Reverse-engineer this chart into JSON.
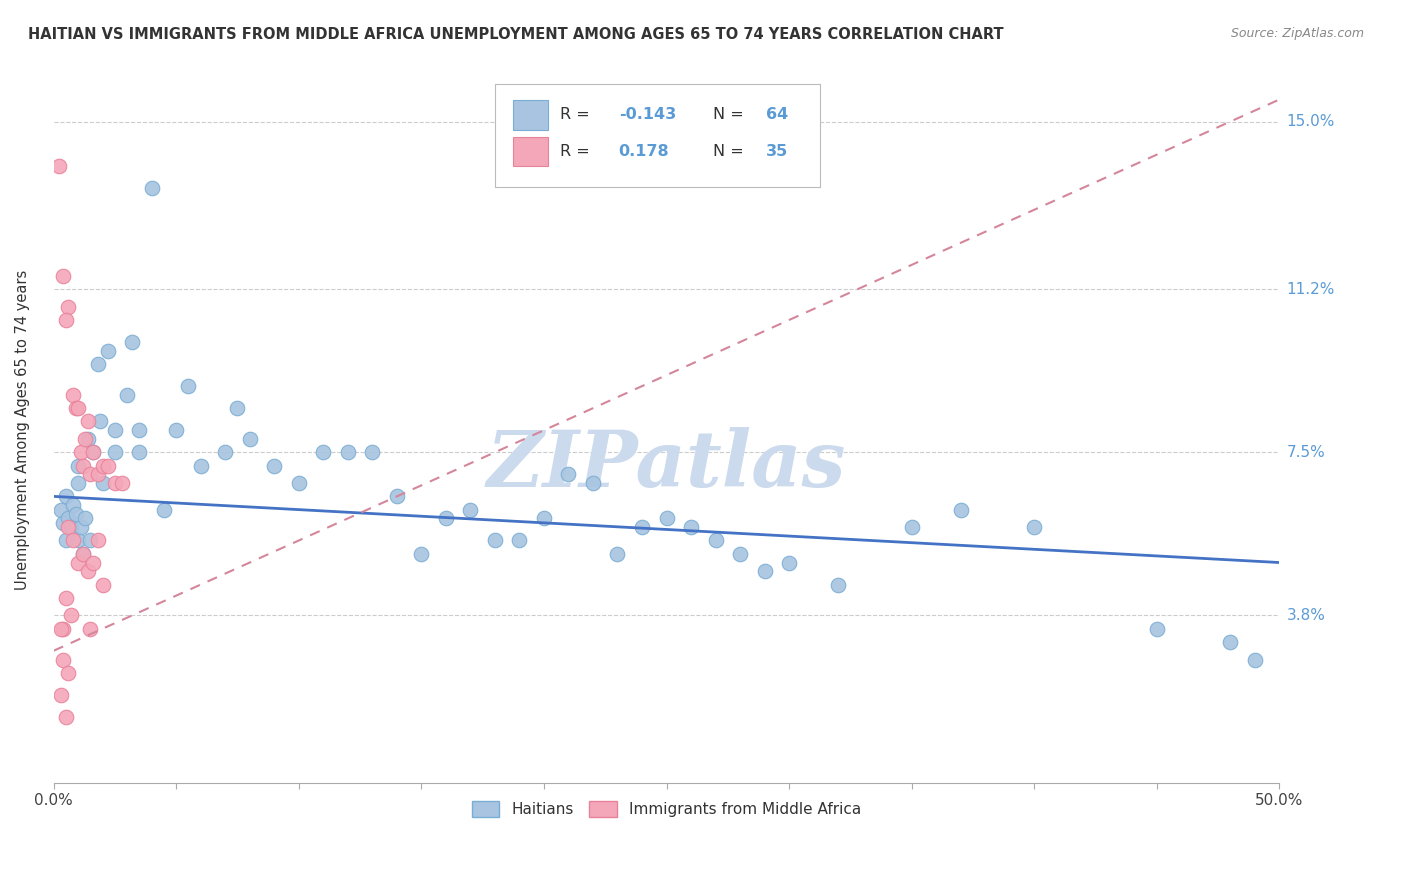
{
  "title": "HAITIAN VS IMMIGRANTS FROM MIDDLE AFRICA UNEMPLOYMENT AMONG AGES 65 TO 74 YEARS CORRELATION CHART",
  "source": "Source: ZipAtlas.com",
  "xmin": 0.0,
  "xmax": 50.0,
  "ymin": 0.0,
  "ymax": 16.0,
  "ylabel_values": [
    0.0,
    3.8,
    7.5,
    11.2,
    15.0
  ],
  "ylabel_labels": [
    "",
    "3.8%",
    "7.5%",
    "11.2%",
    "15.0%"
  ],
  "color_blue": "#a8c4e0",
  "color_blue_edge": "#7aadd4",
  "color_pink": "#f4a7b9",
  "color_pink_edge": "#e8829a",
  "color_blue_text": "#5b9bd5",
  "watermark_text": "ZIPatlas",
  "watermark_color": "#ccdaee",
  "trend_blue_color": "#4472c4",
  "trend_pink_color": "#d4869a",
  "blue_trend_x0": 0.0,
  "blue_trend_y0": 6.5,
  "blue_trend_x1": 50.0,
  "blue_trend_y1": 5.0,
  "pink_trend_x0": 0.0,
  "pink_trend_y0": 3.0,
  "pink_trend_x1": 50.0,
  "pink_trend_y1": 15.5,
  "blue_points": [
    [
      0.3,
      6.2
    ],
    [
      0.4,
      5.9
    ],
    [
      0.5,
      6.5
    ],
    [
      0.5,
      5.5
    ],
    [
      0.6,
      6.0
    ],
    [
      0.7,
      5.8
    ],
    [
      0.8,
      6.3
    ],
    [
      0.9,
      6.1
    ],
    [
      1.0,
      5.5
    ],
    [
      1.0,
      7.2
    ],
    [
      1.0,
      6.8
    ],
    [
      1.1,
      5.8
    ],
    [
      1.2,
      5.2
    ],
    [
      1.3,
      6.0
    ],
    [
      1.4,
      7.8
    ],
    [
      1.5,
      5.5
    ],
    [
      1.6,
      7.5
    ],
    [
      1.8,
      9.5
    ],
    [
      1.9,
      8.2
    ],
    [
      2.0,
      6.8
    ],
    [
      2.2,
      9.8
    ],
    [
      2.5,
      7.5
    ],
    [
      2.5,
      8.0
    ],
    [
      3.0,
      8.8
    ],
    [
      3.2,
      10.0
    ],
    [
      3.5,
      7.5
    ],
    [
      3.5,
      8.0
    ],
    [
      4.0,
      13.5
    ],
    [
      4.5,
      6.2
    ],
    [
      5.0,
      8.0
    ],
    [
      5.5,
      9.0
    ],
    [
      6.0,
      7.2
    ],
    [
      7.0,
      7.5
    ],
    [
      7.5,
      8.5
    ],
    [
      8.0,
      7.8
    ],
    [
      9.0,
      7.2
    ],
    [
      10.0,
      6.8
    ],
    [
      11.0,
      7.5
    ],
    [
      12.0,
      7.5
    ],
    [
      13.0,
      7.5
    ],
    [
      14.0,
      6.5
    ],
    [
      15.0,
      5.2
    ],
    [
      16.0,
      6.0
    ],
    [
      17.0,
      6.2
    ],
    [
      18.0,
      5.5
    ],
    [
      19.0,
      5.5
    ],
    [
      20.0,
      6.0
    ],
    [
      21.0,
      7.0
    ],
    [
      22.0,
      6.8
    ],
    [
      23.0,
      5.2
    ],
    [
      24.0,
      5.8
    ],
    [
      25.0,
      6.0
    ],
    [
      26.0,
      5.8
    ],
    [
      27.0,
      5.5
    ],
    [
      28.0,
      5.2
    ],
    [
      29.0,
      4.8
    ],
    [
      30.0,
      5.0
    ],
    [
      32.0,
      4.5
    ],
    [
      35.0,
      5.8
    ],
    [
      37.0,
      6.2
    ],
    [
      40.0,
      5.8
    ],
    [
      45.0,
      3.5
    ],
    [
      48.0,
      3.2
    ],
    [
      49.0,
      2.8
    ]
  ],
  "pink_points": [
    [
      0.2,
      14.0
    ],
    [
      0.4,
      11.5
    ],
    [
      0.6,
      10.8
    ],
    [
      0.5,
      10.5
    ],
    [
      0.8,
      8.8
    ],
    [
      0.9,
      8.5
    ],
    [
      1.0,
      8.5
    ],
    [
      1.1,
      7.5
    ],
    [
      1.2,
      7.2
    ],
    [
      1.3,
      7.8
    ],
    [
      1.4,
      8.2
    ],
    [
      1.5,
      7.0
    ],
    [
      1.6,
      7.5
    ],
    [
      1.8,
      7.0
    ],
    [
      2.0,
      7.2
    ],
    [
      2.2,
      7.2
    ],
    [
      2.5,
      6.8
    ],
    [
      2.8,
      6.8
    ],
    [
      0.6,
      5.8
    ],
    [
      0.8,
      5.5
    ],
    [
      1.0,
      5.0
    ],
    [
      1.2,
      5.2
    ],
    [
      1.4,
      4.8
    ],
    [
      1.6,
      5.0
    ],
    [
      1.8,
      5.5
    ],
    [
      2.0,
      4.5
    ],
    [
      0.5,
      4.2
    ],
    [
      0.7,
      3.8
    ],
    [
      0.4,
      3.5
    ],
    [
      0.3,
      3.5
    ],
    [
      1.5,
      3.5
    ],
    [
      0.4,
      2.8
    ],
    [
      0.6,
      2.5
    ],
    [
      0.3,
      2.0
    ],
    [
      0.5,
      1.5
    ]
  ]
}
